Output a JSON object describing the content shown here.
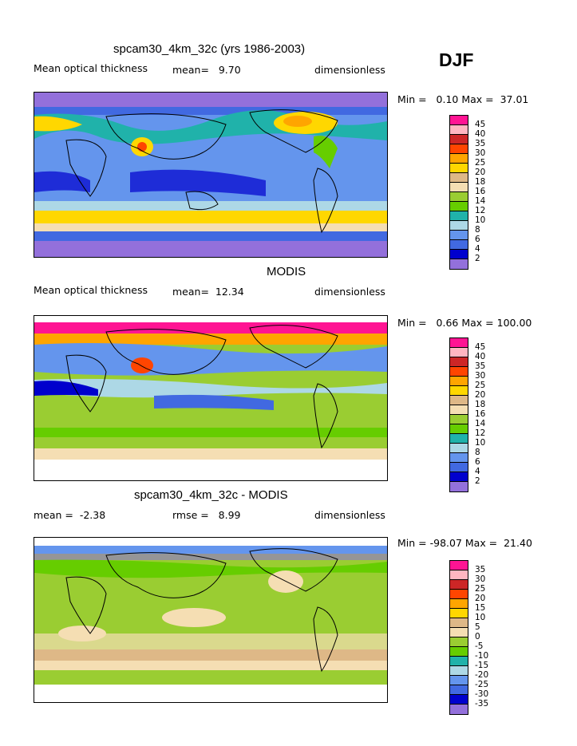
{
  "season": "DJF",
  "panels": [
    {
      "title": "spcam30_4km_32c (yrs 1986-2003)",
      "left_label": "Mean optical thickness",
      "mid_label": "mean=   9.70",
      "right_label": "dimensionless",
      "minmax": "Min =   0.10 Max =  37.01",
      "legend_labels": [
        "45",
        "40",
        "35",
        "30",
        "25",
        "20",
        "18",
        "16",
        "14",
        "12",
        "10",
        "8",
        "6",
        "4",
        "2"
      ],
      "legend_colors": [
        "#ff1493",
        "#ffb6c1",
        "#cd2626",
        "#ff4500",
        "#ffa500",
        "#ffd700",
        "#deb887",
        "#f5deb3",
        "#9acd32",
        "#66cd00",
        "#20b2aa",
        "#add8e6",
        "#6495ed",
        "#4169e1",
        "#0000cd",
        "#9370db"
      ]
    },
    {
      "title": "MODIS",
      "left_label": "Mean optical thickness",
      "mid_label": "mean=  12.34",
      "right_label": "dimensionless",
      "minmax": "Min =   0.66 Max = 100.00",
      "legend_labels": [
        "45",
        "40",
        "35",
        "30",
        "25",
        "20",
        "18",
        "16",
        "14",
        "12",
        "10",
        "8",
        "6",
        "4",
        "2"
      ],
      "legend_colors": [
        "#ff1493",
        "#ffb6c1",
        "#cd2626",
        "#ff4500",
        "#ffa500",
        "#ffd700",
        "#deb887",
        "#f5deb3",
        "#9acd32",
        "#66cd00",
        "#20b2aa",
        "#add8e6",
        "#6495ed",
        "#4169e1",
        "#0000cd",
        "#9370db"
      ]
    },
    {
      "title": "spcam30_4km_32c - MODIS",
      "left_label": "mean =  -2.38",
      "mid_label": "rmse =   8.99",
      "right_label": "dimensionless",
      "minmax": "Min = -98.07 Max =  21.40",
      "legend_labels": [
        "35",
        "30",
        "25",
        "20",
        "15",
        "10",
        "5",
        "0",
        "-5",
        "-10",
        "-15",
        "-20",
        "-25",
        "-30",
        "-35"
      ],
      "legend_colors": [
        "#ff1493",
        "#ffb6c1",
        "#cd2626",
        "#ff4500",
        "#ffa500",
        "#ffd700",
        "#deb887",
        "#f5deb3",
        "#9acd32",
        "#66cd00",
        "#20b2aa",
        "#add8e6",
        "#6495ed",
        "#4169e1",
        "#0000cd",
        "#9370db"
      ]
    }
  ]
}
